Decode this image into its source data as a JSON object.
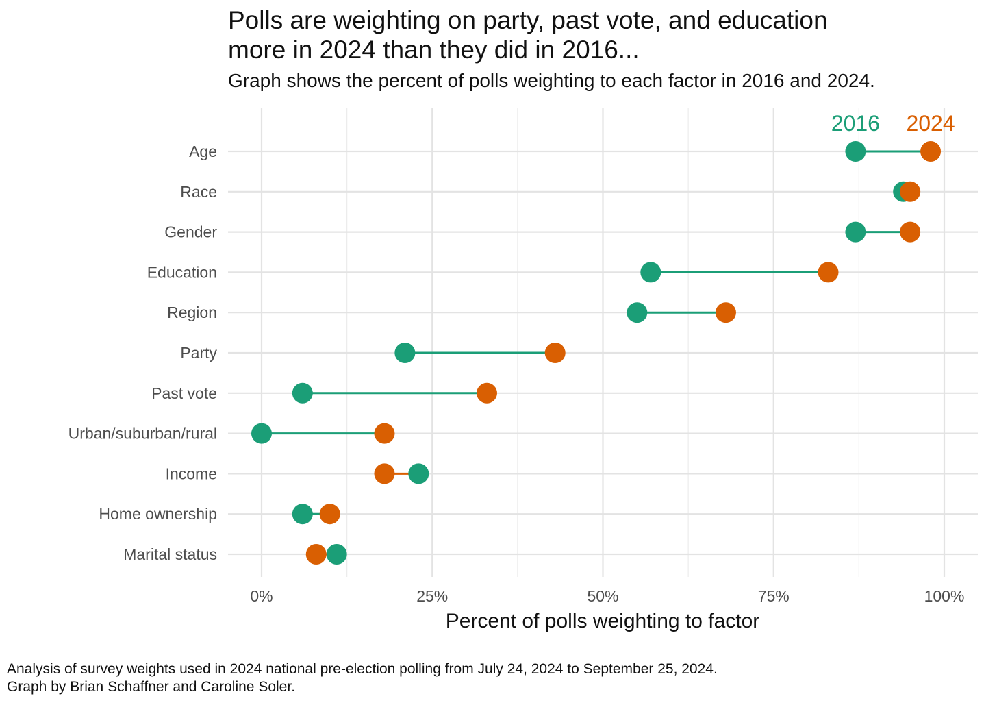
{
  "chart_data": {
    "type": "dumbbell",
    "title_lines": [
      "Polls are weighting on party, past vote, and education",
      "more in 2024 than they did in 2016..."
    ],
    "subtitle": "Graph shows the percent of polls weighting to each factor in 2016 and 2024.",
    "xlabel": "Percent of polls weighting to factor",
    "ylabel": "",
    "xlim": [
      0,
      100
    ],
    "x_ticks": [
      0,
      25,
      50,
      75,
      100
    ],
    "x_tick_labels": [
      "0%",
      "25%",
      "50%",
      "75%",
      "100%"
    ],
    "grid": true,
    "legend_placement": "top-right",
    "categories": [
      "Age",
      "Race",
      "Gender",
      "Education",
      "Region",
      "Party",
      "Past vote",
      "Urban/suburban/rural",
      "Income",
      "Home ownership",
      "Marital status"
    ],
    "series": [
      {
        "name": "2016",
        "color": "#1b9e77",
        "values": [
          87,
          94,
          87,
          57,
          55,
          21,
          6,
          0,
          23,
          6,
          11
        ]
      },
      {
        "name": "2024",
        "color": "#d95f02",
        "values": [
          98,
          95,
          95,
          83,
          68,
          43,
          33,
          18,
          18,
          10,
          8
        ]
      }
    ],
    "caption_lines": [
      "Analysis of survey weights used in 2024 national pre-election polling from July 24, 2024 to September 25, 2024.",
      "Graph by Brian Schaffner and Caroline Soler."
    ]
  }
}
